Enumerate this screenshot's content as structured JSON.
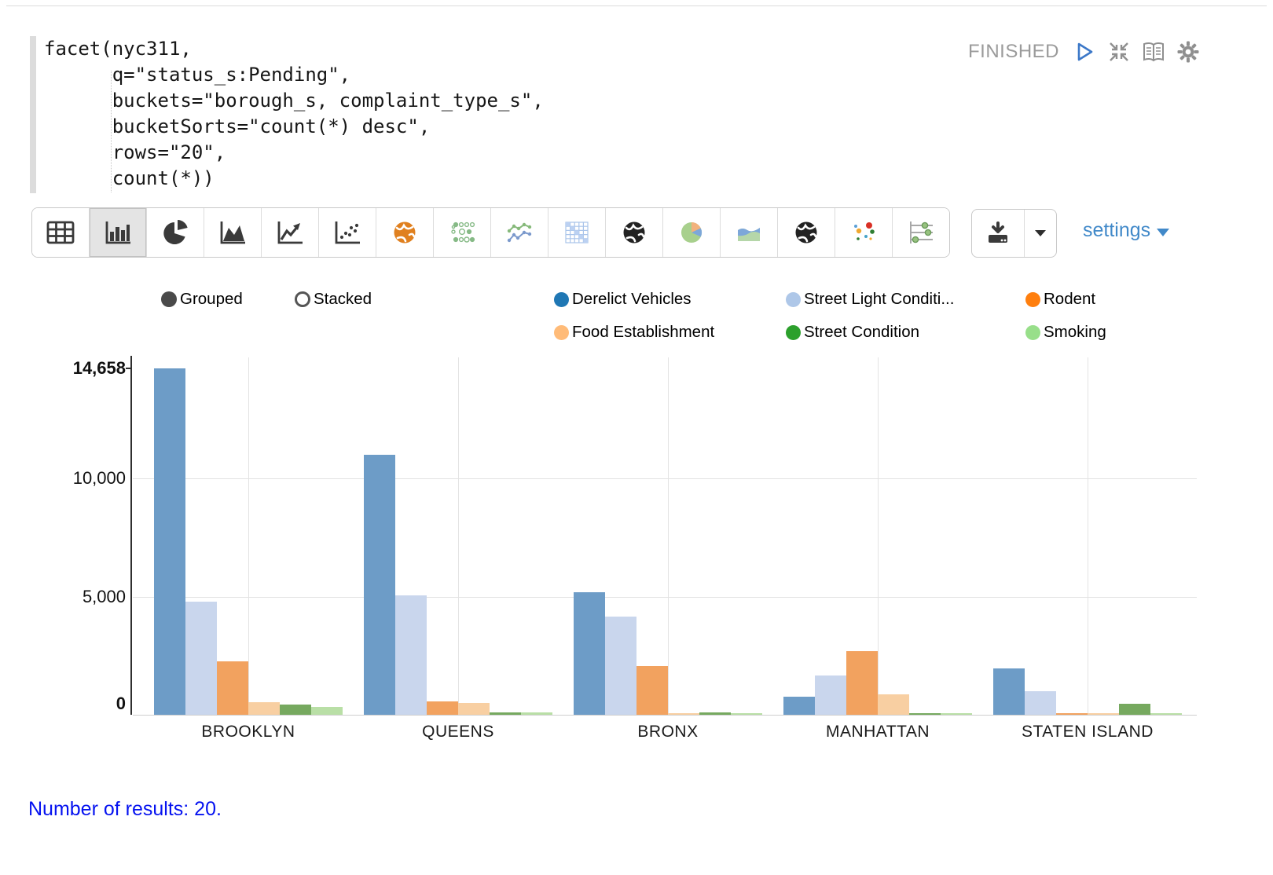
{
  "status": {
    "label": "FINISHED"
  },
  "paragraph_controls": [
    "play-icon",
    "collapse-icon",
    "book-icon",
    "gear-icon"
  ],
  "code": {
    "lines": [
      "facet(nyc311,",
      "      q=\"status_s:Pending\",",
      "      buckets=\"borough_s, complaint_type_s\",",
      "      bucketSorts=\"count(*) desc\",",
      "      rows=\"20\",",
      "      count(*))"
    ]
  },
  "toolbar": {
    "buttons": [
      {
        "icon": "table-icon",
        "selected": false
      },
      {
        "icon": "bar-chart-icon",
        "selected": true
      },
      {
        "icon": "pie-chart-icon",
        "selected": false
      },
      {
        "icon": "area-chart-icon",
        "selected": false
      },
      {
        "icon": "line-chart-icon",
        "selected": false
      },
      {
        "icon": "scatter-plot-icon",
        "selected": false
      },
      {
        "icon": "globe-orange-icon",
        "selected": false
      },
      {
        "icon": "dot-matrix-icon",
        "selected": false
      },
      {
        "icon": "multi-line-chart-icon",
        "selected": false
      },
      {
        "icon": "heatmap-icon",
        "selected": false
      },
      {
        "icon": "globe-dark-icon",
        "selected": false
      },
      {
        "icon": "pie-colored-icon",
        "selected": false
      },
      {
        "icon": "area-colored-icon",
        "selected": false
      },
      {
        "icon": "globe-dark2-icon",
        "selected": false
      },
      {
        "icon": "scatter-colored-icon",
        "selected": false
      },
      {
        "icon": "slider-filter-icon",
        "selected": false
      }
    ],
    "download_icon": "download-icon",
    "settings_label": "settings"
  },
  "legend": {
    "mode_options": [
      {
        "label": "Grouped",
        "selected": true
      },
      {
        "label": "Stacked",
        "selected": false
      }
    ]
  },
  "chart_data": {
    "type": "bar",
    "mode": "grouped",
    "categories": [
      "BROOKLYN",
      "QUEENS",
      "BRONX",
      "MANHATTAN",
      "STATEN ISLAND"
    ],
    "series": [
      {
        "name": "Derelict Vehicles",
        "color": "#1f77b4",
        "bar_color": "#6d9cc7",
        "values": [
          14658,
          11000,
          5200,
          750,
          1950
        ]
      },
      {
        "name": "Street Light Conditi...",
        "color": "#aec7e8",
        "bar_color": "#c9d6ed",
        "values": [
          4800,
          5050,
          4150,
          1650,
          1000
        ]
      },
      {
        "name": "Rodent",
        "color": "#ff7f0e",
        "bar_color": "#f2a25f",
        "values": [
          2250,
          580,
          2050,
          2700,
          60
        ]
      },
      {
        "name": "Food Establishment",
        "color": "#ffbb78",
        "bar_color": "#f8cfa2",
        "values": [
          540,
          500,
          60,
          850,
          60
        ]
      },
      {
        "name": "Street Condition",
        "color": "#2ca02c",
        "bar_color": "#76a95f",
        "values": [
          430,
          90,
          90,
          70,
          480
        ]
      },
      {
        "name": "Smoking",
        "color": "#98df8a",
        "bar_color": "#b9dfa6",
        "values": [
          340,
          90,
          60,
          50,
          50
        ]
      }
    ],
    "ylim": [
      0,
      14658
    ],
    "yticks": [
      {
        "label": "14,658",
        "value": 14658,
        "bold": true,
        "grid": false,
        "tick": true
      },
      {
        "label": "10,000",
        "value": 10000,
        "bold": false,
        "grid": true,
        "tick": false
      },
      {
        "label": "5,000",
        "value": 5000,
        "bold": false,
        "grid": true,
        "tick": false
      },
      {
        "label": "0",
        "value": 0,
        "bold": true,
        "grid": false,
        "tick": false
      }
    ],
    "grid": true,
    "legend_position": "top"
  },
  "footer": {
    "results_text": "Number of results: 20."
  }
}
